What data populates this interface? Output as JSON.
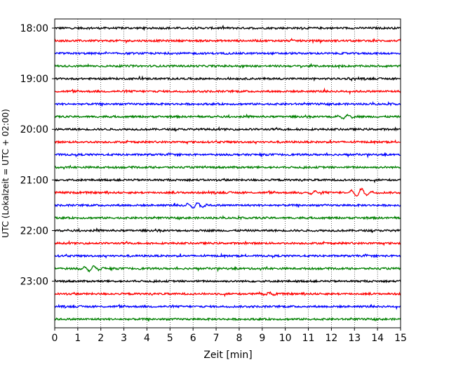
{
  "chart_data": {
    "type": "line",
    "title": "",
    "xlabel": "Zeit  [min]",
    "ylabel": "UTC (Lokalzeit = UTC + 02:00)",
    "xlim": [
      0,
      15
    ],
    "x_ticks": [
      "0",
      "1",
      "2",
      "3",
      "4",
      "5",
      "6",
      "7",
      "8",
      "9",
      "10",
      "11",
      "12",
      "13",
      "14",
      "15"
    ],
    "y_ticks": [
      "18:00",
      "19:00",
      "20:00",
      "21:00",
      "22:00",
      "23:00"
    ],
    "y_tick_hours": [
      18,
      19,
      20,
      21,
      22,
      23
    ],
    "grid": "vertical-dotted",
    "colors": [
      "#000000",
      "#ff0000",
      "#0000ff",
      "#008000"
    ],
    "traces": [
      {
        "start": "18:00",
        "color": "#000000",
        "events": []
      },
      {
        "start": "18:15",
        "color": "#ff0000",
        "events": []
      },
      {
        "start": "18:30",
        "color": "#0000ff",
        "events": []
      },
      {
        "start": "18:45",
        "color": "#008000",
        "events": []
      },
      {
        "start": "19:00",
        "color": "#000000",
        "events": []
      },
      {
        "start": "19:15",
        "color": "#ff0000",
        "events": []
      },
      {
        "start": "19:30",
        "color": "#0000ff",
        "events": []
      },
      {
        "start": "19:45",
        "color": "#008000",
        "events": [
          {
            "t": 12.6,
            "amplitude": 0.5
          }
        ]
      },
      {
        "start": "20:00",
        "color": "#000000",
        "events": []
      },
      {
        "start": "20:15",
        "color": "#ff0000",
        "events": []
      },
      {
        "start": "20:30",
        "color": "#0000ff",
        "events": []
      },
      {
        "start": "20:45",
        "color": "#008000",
        "events": []
      },
      {
        "start": "21:00",
        "color": "#000000",
        "events": []
      },
      {
        "start": "21:15",
        "color": "#ff0000",
        "events": [
          {
            "t": 11.2,
            "amplitude": 0.35
          },
          {
            "t": 13.2,
            "amplitude": 1.0
          }
        ]
      },
      {
        "start": "21:30",
        "color": "#0000ff",
        "events": [
          {
            "t": 6.1,
            "amplitude": 0.7
          }
        ]
      },
      {
        "start": "21:45",
        "color": "#008000",
        "events": []
      },
      {
        "start": "22:00",
        "color": "#000000",
        "events": []
      },
      {
        "start": "22:15",
        "color": "#ff0000",
        "events": []
      },
      {
        "start": "22:30",
        "color": "#0000ff",
        "events": []
      },
      {
        "start": "22:45",
        "color": "#008000",
        "events": [
          {
            "t": 1.6,
            "amplitude": 0.55
          }
        ]
      },
      {
        "start": "23:00",
        "color": "#000000",
        "events": []
      },
      {
        "start": "23:15",
        "color": "#ff0000",
        "events": [
          {
            "t": 9.2,
            "amplitude": 0.3
          }
        ]
      },
      {
        "start": "23:30",
        "color": "#0000ff",
        "events": []
      },
      {
        "start": "23:45",
        "color": "#008000",
        "events": []
      }
    ]
  }
}
